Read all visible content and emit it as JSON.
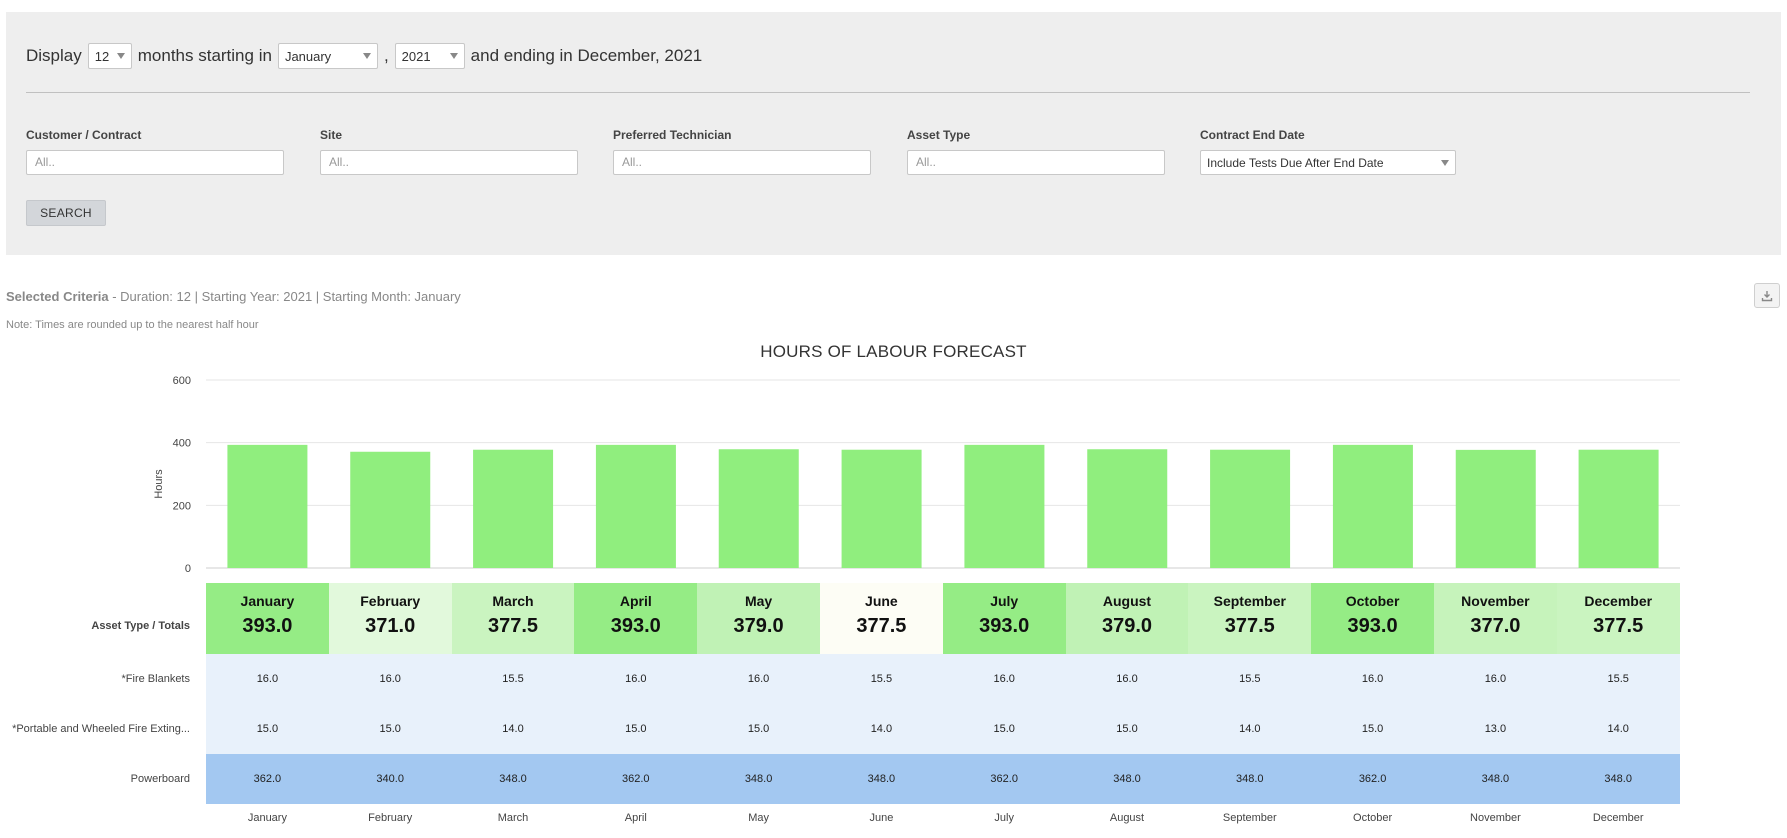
{
  "filters": {
    "display_label": "Display",
    "months_value": "12",
    "months_starting_label": "months starting in",
    "start_month": "January",
    "comma": ",",
    "start_year": "2021",
    "ending_label": "and ending in December, 2021",
    "fields": [
      {
        "label": "Customer / Contract",
        "placeholder": "All.."
      },
      {
        "label": "Site",
        "placeholder": "All.."
      },
      {
        "label": "Preferred Technician",
        "placeholder": "All.."
      },
      {
        "label": "Asset Type",
        "placeholder": "All.."
      }
    ],
    "contract_end": {
      "label": "Contract End Date",
      "value": "Include Tests Due After End Date"
    },
    "search_label": "SEARCH"
  },
  "criteria": {
    "bold": "Selected Criteria",
    "text": " - Duration: 12 | Starting Year: 2021 | Starting Month: January"
  },
  "note": "Note: Times are rounded up to the nearest half hour",
  "chart_data": {
    "type": "bar",
    "title": "HOURS OF LABOUR FORECAST",
    "ylabel": "Hours",
    "xlabel": "",
    "ylim": [
      0,
      600
    ],
    "yticks": [
      0,
      200,
      400,
      600
    ],
    "grid": true,
    "categories": [
      "January",
      "February",
      "March",
      "April",
      "May",
      "June",
      "July",
      "August",
      "September",
      "October",
      "November",
      "December"
    ],
    "values": [
      393.0,
      371.0,
      377.5,
      393.0,
      379.0,
      377.5,
      393.0,
      379.0,
      377.5,
      393.0,
      377.0,
      377.5
    ],
    "bar_color": "#90ee7e"
  },
  "table": {
    "header_label": "Asset Type / Totals",
    "totals": [
      "393.0",
      "371.0",
      "377.5",
      "393.0",
      "379.0",
      "377.5",
      "393.0",
      "379.0",
      "377.5",
      "393.0",
      "377.0",
      "377.5"
    ],
    "total_colors": [
      "#95ec85",
      "#e2f9dc",
      "#caf4c0",
      "#95ec85",
      "#c0f2b5",
      "#fdfdf5",
      "#95ec85",
      "#c0f2b5",
      "#caf4c0",
      "#95ec85",
      "#c6f3bb",
      "#caf4c0"
    ],
    "rows": [
      {
        "label": "*Fire Blankets",
        "values": [
          "16.0",
          "16.0",
          "15.5",
          "16.0",
          "16.0",
          "15.5",
          "16.0",
          "16.0",
          "15.5",
          "16.0",
          "16.0",
          "15.5"
        ],
        "color": "#e8f1fb"
      },
      {
        "label": "*Portable and Wheeled Fire Exting...",
        "values": [
          "15.0",
          "15.0",
          "14.0",
          "15.0",
          "15.0",
          "14.0",
          "15.0",
          "15.0",
          "14.0",
          "15.0",
          "13.0",
          "14.0"
        ],
        "color": "#e8f1fb"
      },
      {
        "label": "Powerboard",
        "values": [
          "362.0",
          "340.0",
          "348.0",
          "362.0",
          "348.0",
          "348.0",
          "362.0",
          "348.0",
          "348.0",
          "362.0",
          "348.0",
          "348.0"
        ],
        "color": "#a3c8f1"
      }
    ],
    "footer_months": [
      "January",
      "February",
      "March",
      "April",
      "May",
      "June",
      "July",
      "August",
      "September",
      "October",
      "November",
      "December"
    ]
  }
}
